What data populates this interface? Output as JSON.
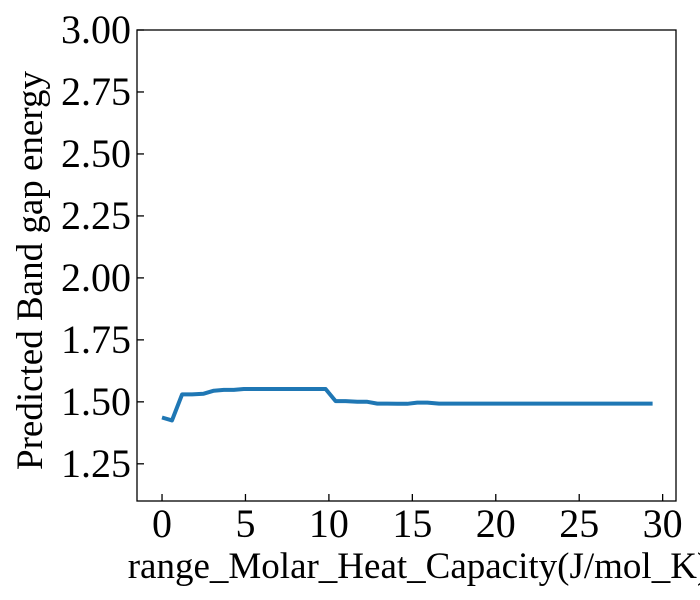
{
  "chart_data": {
    "type": "line",
    "xlabel": "range_Molar_Heat_Capacity(J/mol_K)",
    "ylabel": "Predicted Band gap energy",
    "xlim": [
      -1.5,
      30.8
    ],
    "ylim": [
      1.1,
      3.0
    ],
    "xticks": [
      0,
      5,
      10,
      15,
      20,
      25,
      30
    ],
    "xtick_labels": [
      "0",
      "5",
      "10",
      "15",
      "20",
      "25",
      "30"
    ],
    "yticks": [
      1.25,
      1.5,
      1.75,
      2.0,
      2.25,
      2.5,
      2.75,
      3.0
    ],
    "ytick_labels": [
      "1.25",
      "1.50",
      "1.75",
      "2.00",
      "2.25",
      "2.50",
      "2.75",
      "3.00"
    ],
    "grid": false,
    "color": "#1f77b4",
    "series": [
      {
        "x": [
          0.0,
          0.6,
          1.2,
          1.8,
          2.5,
          3.1,
          3.7,
          4.3,
          4.9,
          5.5,
          6.1,
          6.8,
          7.4,
          8.0,
          8.6,
          9.2,
          9.8,
          10.4,
          11.0,
          11.7,
          12.3,
          12.9,
          13.5,
          14.1,
          14.7,
          15.3,
          15.9,
          16.6,
          17.2,
          17.8,
          18.4,
          19.0,
          19.6,
          20.2,
          20.9,
          21.5,
          22.1,
          22.7,
          23.3,
          23.9,
          24.5,
          25.2,
          25.8,
          26.4,
          27.0,
          27.6,
          28.2,
          28.8,
          29.4
        ],
        "y": [
          1.437,
          1.425,
          1.53,
          1.53,
          1.533,
          1.545,
          1.548,
          1.548,
          1.552,
          1.552,
          1.552,
          1.552,
          1.552,
          1.552,
          1.552,
          1.552,
          1.552,
          1.503,
          1.503,
          1.5,
          1.5,
          1.493,
          1.493,
          1.492,
          1.492,
          1.497,
          1.497,
          1.493,
          1.493,
          1.493,
          1.493,
          1.493,
          1.493,
          1.493,
          1.493,
          1.493,
          1.493,
          1.493,
          1.493,
          1.493,
          1.493,
          1.493,
          1.493,
          1.493,
          1.493,
          1.493,
          1.493,
          1.493,
          1.493
        ]
      }
    ]
  }
}
